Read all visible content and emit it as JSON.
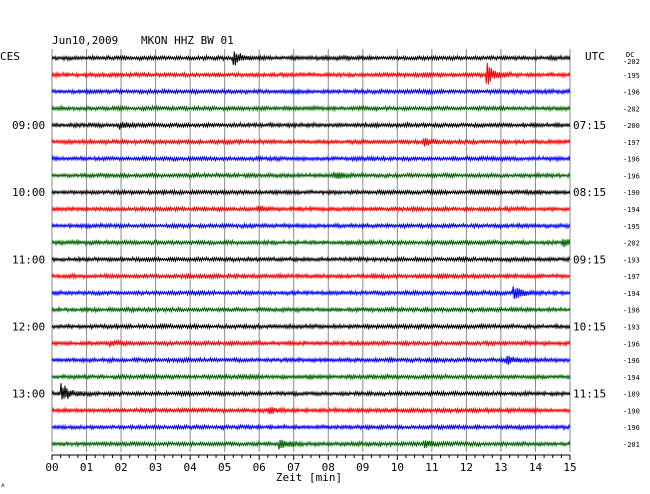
{
  "header": {
    "date": "Jun10,2009",
    "station": "MKON HHZ BW 01",
    "left_label": "CES",
    "right_label": "UTC",
    "dc_label": "DC"
  },
  "chart_data": {
    "type": "line",
    "title": "Jun10,2009   MKON HHZ BW 01",
    "xlabel": "Zeit [min]",
    "x_ticks": [
      "00",
      "01",
      "02",
      "03",
      "04",
      "05",
      "06",
      "07",
      "08",
      "09",
      "10",
      "11",
      "12",
      "13",
      "14",
      "15"
    ],
    "xlim": [
      0,
      15
    ],
    "trace_colors": [
      "#000000",
      "#ff0000",
      "#0000ff",
      "#006400"
    ],
    "rows": 24,
    "left_time_labels": [
      {
        "row": 4,
        "text": "09:00"
      },
      {
        "row": 8,
        "text": "10:00"
      },
      {
        "row": 12,
        "text": "11:00"
      },
      {
        "row": 16,
        "text": "12:00"
      },
      {
        "row": 20,
        "text": "13:00"
      }
    ],
    "right_time_labels": [
      {
        "row": 4,
        "text": "07:15"
      },
      {
        "row": 8,
        "text": "08:15"
      },
      {
        "row": 12,
        "text": "09:15"
      },
      {
        "row": 16,
        "text": "10:15"
      },
      {
        "row": 20,
        "text": "11:15"
      }
    ],
    "dc_offsets": [
      "-202",
      "-195",
      "-196",
      "-202",
      "-200",
      "-197",
      "-196",
      "-196",
      "-190",
      "-194",
      "-195",
      "-202",
      "-193",
      "-197",
      "-194",
      "-196",
      "-193",
      "-196",
      "-196",
      "-194",
      "-189",
      "-190",
      "-196",
      "-201"
    ],
    "events": [
      {
        "row": 0,
        "minute": 5.3,
        "amplitude": 6
      },
      {
        "row": 1,
        "minute": 12.6,
        "amplitude": 11
      },
      {
        "row": 4,
        "minute": 2.0,
        "amplitude": 3
      },
      {
        "row": 5,
        "minute": 10.8,
        "amplitude": 3
      },
      {
        "row": 7,
        "minute": 8.2,
        "amplitude": 3
      },
      {
        "row": 9,
        "minute": 6.0,
        "amplitude": 3
      },
      {
        "row": 11,
        "minute": 14.8,
        "amplitude": 3
      },
      {
        "row": 14,
        "minute": 13.4,
        "amplitude": 6
      },
      {
        "row": 17,
        "minute": 1.7,
        "amplitude": 3
      },
      {
        "row": 18,
        "minute": 13.2,
        "amplitude": 4
      },
      {
        "row": 20,
        "minute": 0.3,
        "amplitude": 10
      },
      {
        "row": 21,
        "minute": 6.3,
        "amplitude": 3
      },
      {
        "row": 23,
        "minute": 6.6,
        "amplitude": 5
      },
      {
        "row": 23,
        "minute": 10.8,
        "amplitude": 3
      }
    ]
  }
}
